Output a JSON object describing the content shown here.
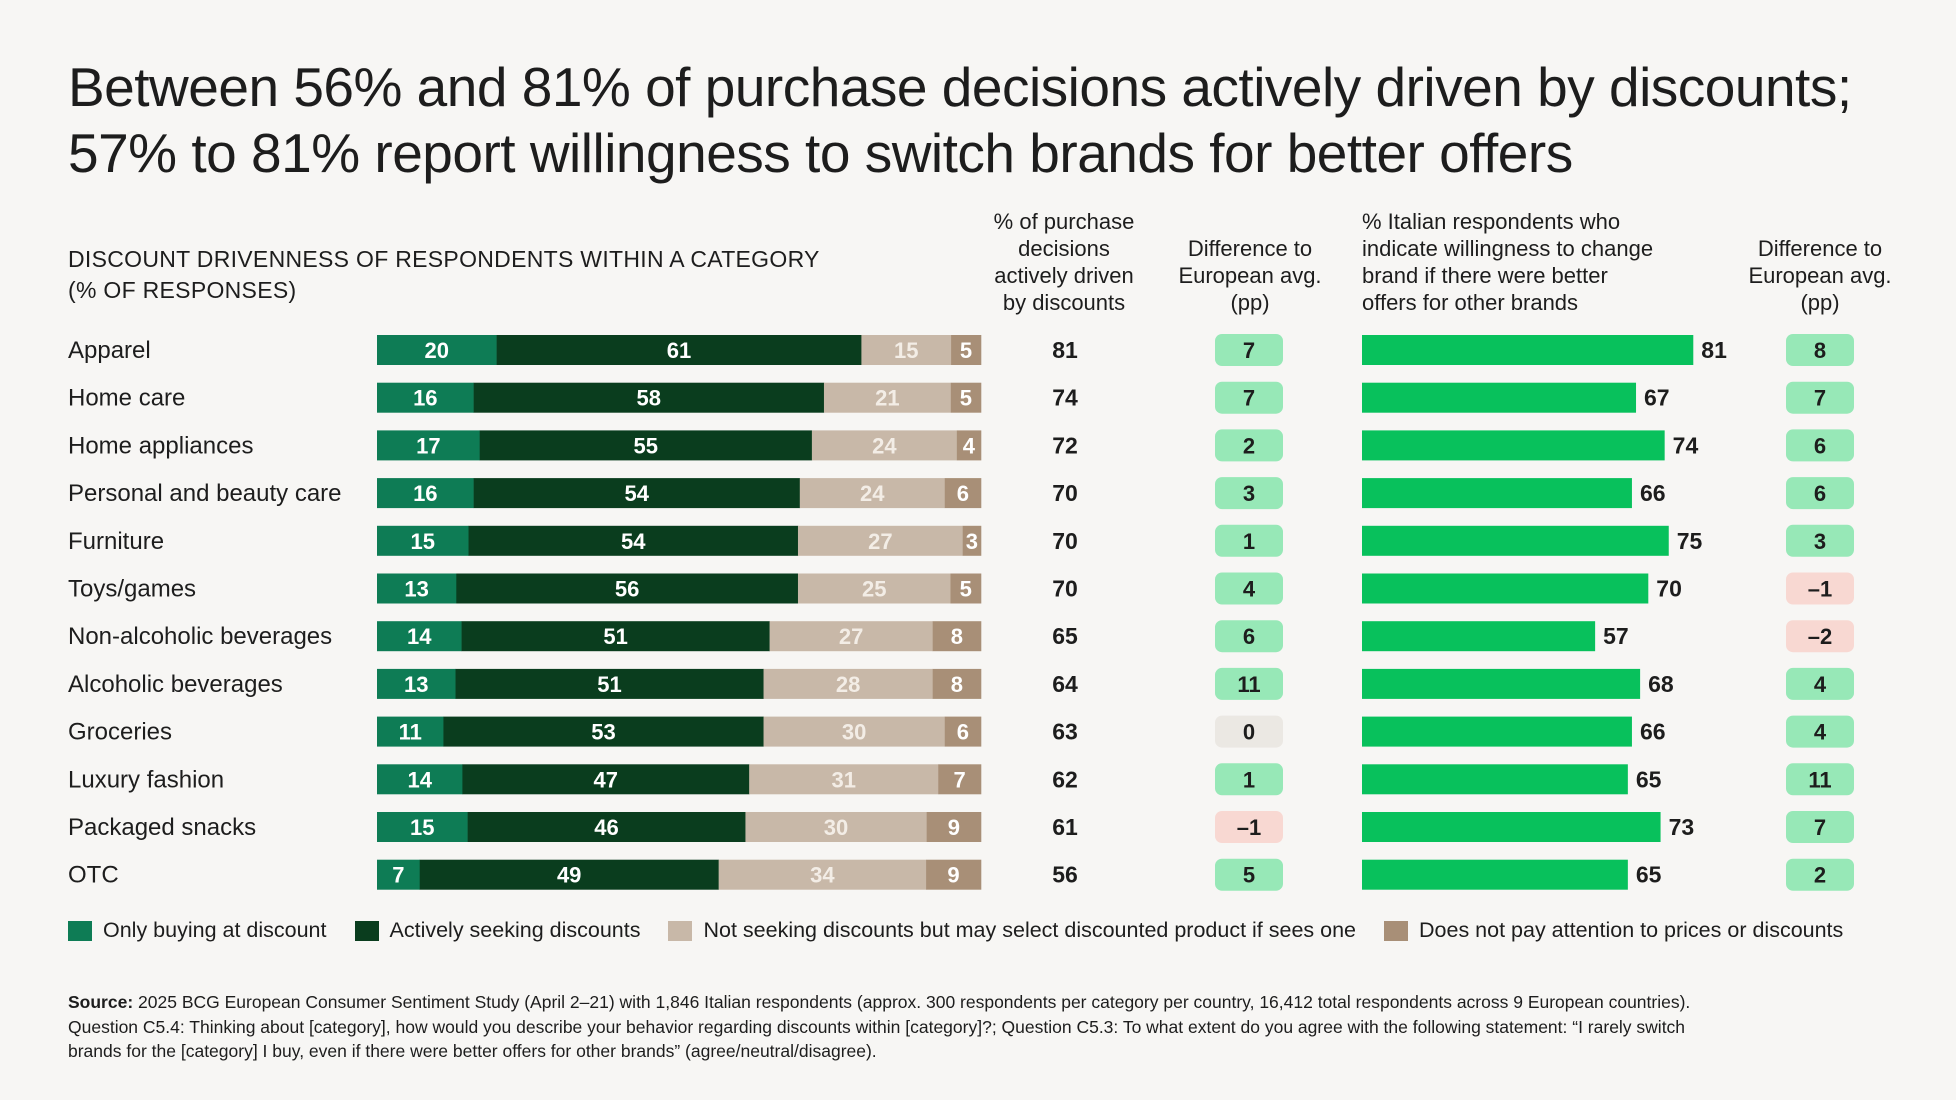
{
  "header": {
    "title_line1": "Between 56% and 81% of purchase decisions actively driven by discounts;",
    "title_line2": "57% to 81% report willingness to switch brands for better offers",
    "subtitle_line1": "DISCOUNT DRIVENNESS OF RESPONDENTS WITHIN A CATEGORY",
    "subtitle_line2": "(% OF RESPONSES)"
  },
  "columns": {
    "pct_driven": [
      "% of purchase",
      "decisions",
      "actively driven",
      "by discounts"
    ],
    "diff1": [
      "Difference to",
      "European avg.",
      "(pp)"
    ],
    "willingness": [
      "% Italian respondents who",
      "indicate willingness to change",
      "brand if there were better",
      "offers for other brands"
    ],
    "diff2": [
      "Difference to",
      "European avg.",
      "(pp)"
    ]
  },
  "colors": {
    "only_discount": "#0e7c55",
    "actively_seeking": "#0a3d1e",
    "not_seeking": "#c8b8a8",
    "no_attention": "#a88f77",
    "willingness_bar": "#08c15c",
    "pill_positive": "#97e8b7",
    "pill_zero": "#ebe8e3",
    "pill_negative": "#f8d8d2"
  },
  "chart_data": {
    "type": "bar",
    "stacked": true,
    "orientation": "horizontal",
    "categories": [
      "Apparel",
      "Home care",
      "Home appliances",
      "Personal and beauty care",
      "Furniture",
      "Toys/games",
      "Non-alcoholic beverages",
      "Alcoholic beverages",
      "Groceries",
      "Luxury fashion",
      "Packaged snacks",
      "OTC"
    ],
    "series": [
      {
        "name": "Only buying at discount",
        "values": [
          20,
          16,
          17,
          16,
          15,
          13,
          14,
          13,
          11,
          14,
          15,
          7
        ]
      },
      {
        "name": "Actively seeking discounts",
        "values": [
          61,
          58,
          55,
          54,
          54,
          56,
          51,
          51,
          53,
          47,
          46,
          49
        ]
      },
      {
        "name": "Not seeking discounts but may select discounted product if sees one",
        "values": [
          15,
          21,
          24,
          24,
          27,
          25,
          27,
          28,
          30,
          31,
          30,
          34
        ]
      },
      {
        "name": "Does not pay attention to prices or discounts",
        "values": [
          5,
          5,
          4,
          6,
          3,
          5,
          8,
          8,
          6,
          7,
          9,
          9
        ]
      }
    ],
    "pct_actively_driven": [
      81,
      74,
      72,
      70,
      70,
      70,
      65,
      64,
      63,
      62,
      61,
      56
    ],
    "diff_driven_display": [
      "7",
      "7",
      "2",
      "3",
      "1",
      "4",
      "6",
      "11",
      "0",
      "1",
      "–1",
      "5"
    ],
    "diff_driven": [
      7,
      7,
      2,
      3,
      1,
      4,
      6,
      11,
      0,
      1,
      -1,
      5
    ],
    "willingness_to_switch": [
      81,
      67,
      74,
      66,
      75,
      70,
      57,
      68,
      66,
      65,
      73,
      65
    ],
    "diff_willingness_display": [
      "8",
      "7",
      "6",
      "6",
      "3",
      "–1",
      "–2",
      "4",
      "4",
      "11",
      "7",
      "2"
    ],
    "diff_willingness": [
      8,
      7,
      6,
      6,
      3,
      -1,
      -2,
      4,
      4,
      11,
      7,
      2
    ],
    "xlim": [
      0,
      100
    ],
    "legend_position": "bottom"
  },
  "source": {
    "label": "Source:",
    "line1": "2025 BCG European Consumer Sentiment Study (April 2–21) with 1,846 Italian respondents (approx. 300 respondents per category per country, 16,412 total respondents across 9 European countries).",
    "line2": "Question C5.4: Thinking about [category], how would you describe your behavior regarding discounts within [category]?; Question C5.3: To what extent do you agree with the following statement: “I rarely switch",
    "line3": "brands for the [category] I buy, even if there were better offers for other brands” (agree/neutral/disagree)."
  }
}
